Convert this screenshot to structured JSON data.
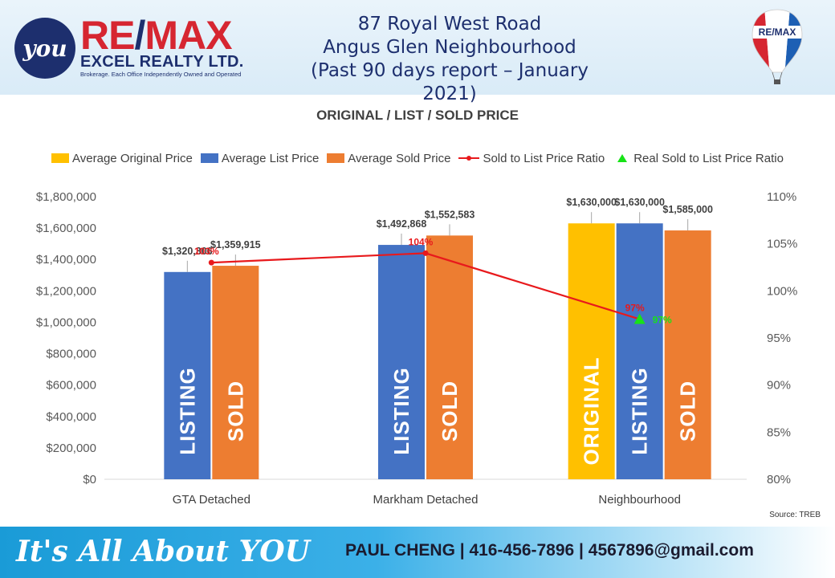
{
  "header": {
    "logo_circle_text": "you",
    "brand_re": "RE",
    "brand_slash": "/",
    "brand_max": "MAX",
    "brand_sub": "EXCEL REALTY LTD.",
    "brand_tag": "Brokerage. Each Office Independently Owned and Operated",
    "title_line1": "87 Royal West Road",
    "title_line2": "Angus Glen Neighbourhood",
    "title_line3": "(Past 90 days report – January 2021)",
    "balloon_text": "RE/MAX"
  },
  "chart_data": {
    "type": "bar",
    "title": "ORIGINAL / LIST / SOLD PRICE",
    "categories": [
      "GTA Detached",
      "Markham Detached",
      "Neighbourhood"
    ],
    "series": [
      {
        "name": "Average Original Price",
        "color": "#ffc000",
        "values": [
          null,
          null,
          1630000
        ],
        "labels": [
          null,
          null,
          "$1,630,000"
        ],
        "bar_word": "ORIGINAL"
      },
      {
        "name": "Average List Price",
        "color": "#4472c4",
        "values": [
          1320306,
          1492868,
          1630000
        ],
        "labels": [
          "$1,320,306",
          "$1,492,868",
          "$1,630,000"
        ],
        "bar_word": "LISTING"
      },
      {
        "name": "Average Sold Price",
        "color": "#ed7d31",
        "values": [
          1359915,
          1552583,
          1585000
        ],
        "labels": [
          "$1,359,915",
          "$1,552,583",
          "$1,585,000"
        ],
        "bar_word": "SOLD"
      }
    ],
    "line_series": {
      "name": "Sold to List Price Ratio",
      "color": "#e8191c",
      "values": [
        103,
        104,
        97
      ],
      "labels": [
        "103%",
        "104%",
        "97%"
      ]
    },
    "marker_series": {
      "name": "Real Sold to List Price Ratio",
      "color": "#17e317",
      "values": [
        null,
        null,
        97
      ],
      "labels": [
        null,
        null,
        "97%"
      ]
    },
    "y_left": {
      "min": 0,
      "max": 1800000,
      "step": 200000,
      "tick_labels": [
        "$0",
        "$200,000",
        "$400,000",
        "$600,000",
        "$800,000",
        "$1,000,000",
        "$1,200,000",
        "$1,400,000",
        "$1,600,000",
        "$1,800,000"
      ]
    },
    "y_right": {
      "min": 80,
      "max": 110,
      "step": 5,
      "tick_labels": [
        "80%",
        "85%",
        "90%",
        "95%",
        "100%",
        "105%",
        "110%"
      ]
    },
    "legend_position": "top",
    "grid": false
  },
  "source_text": "Source: TREB",
  "footer": {
    "slogan": "It's All About YOU",
    "contact": "PAUL CHENG | 416-456-7896 | 4567896@gmail.com"
  }
}
